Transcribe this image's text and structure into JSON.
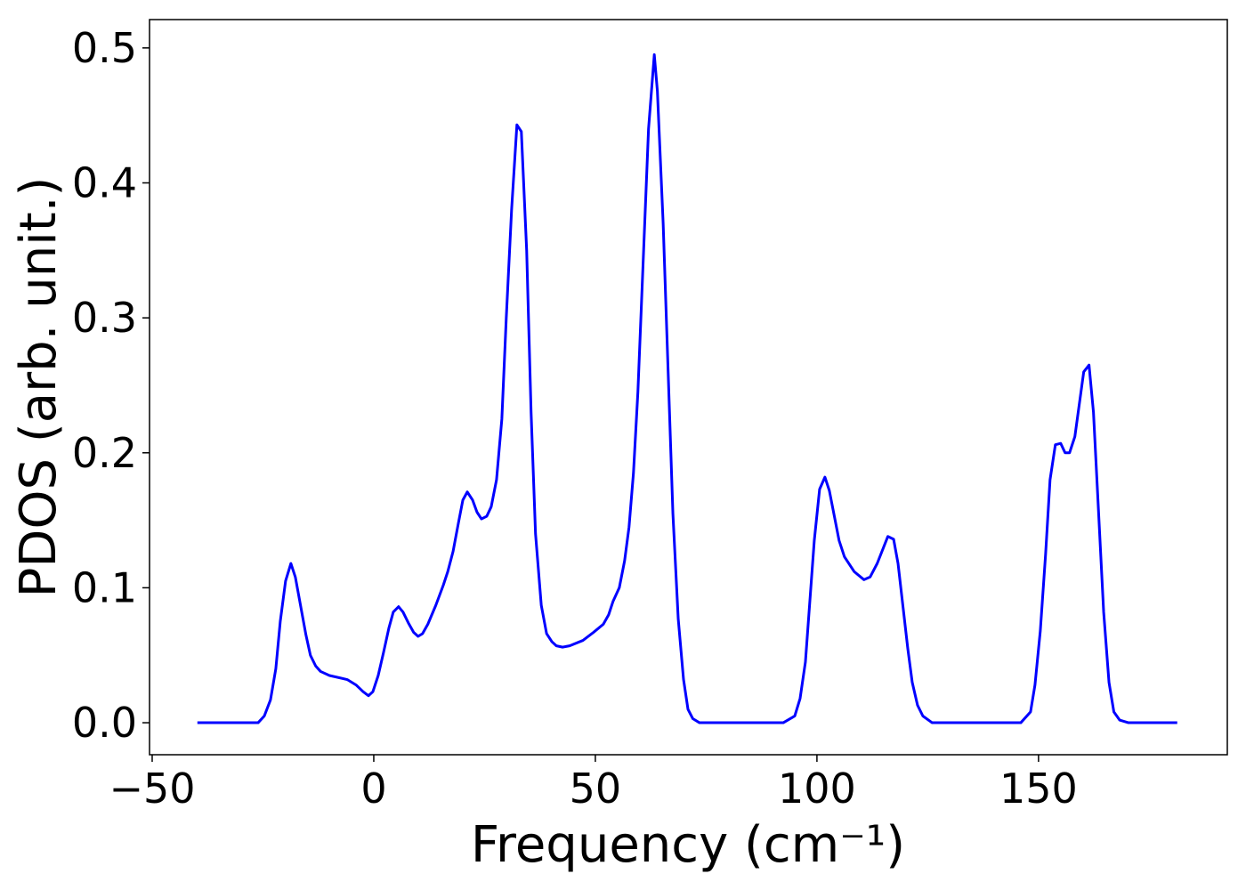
{
  "chart_data": {
    "type": "line",
    "xlabel": "Frequency (cm⁻¹)",
    "ylabel": "PDOS (arb. unit.)",
    "x": [
      -39.8,
      -26.1,
      -24.7,
      -23.3,
      -22.1,
      -21.1,
      -19.9,
      -18.7,
      -17.7,
      -15.3,
      -14.3,
      -13.1,
      -12,
      -10,
      -6,
      -4,
      -2.4,
      -1.2,
      -0.2,
      1,
      2.2,
      3.4,
      4.4,
      5.6,
      6.6,
      7.8,
      9,
      10,
      11,
      12.2,
      14,
      15.7,
      16.7,
      17.9,
      19.1,
      20.1,
      21.1,
      22.3,
      23.3,
      24.3,
      25.5,
      26.5,
      27.7,
      28.9,
      29.9,
      31.1,
      32.3,
      33.3,
      34.5,
      35.5,
      36.5,
      37.8,
      39,
      40.2,
      41.2,
      42.6,
      44.2,
      47.2,
      49.6,
      51.8,
      53,
      54,
      55.4,
      56.6,
      57.6,
      58.6,
      59.6,
      62,
      63.3,
      64,
      65.3,
      67.5,
      68.7,
      69.9,
      70.9,
      72,
      73.5,
      92.4,
      95,
      96.2,
      97.4,
      99.4,
      100.6,
      101.8,
      102.8,
      105,
      106.2,
      108.4,
      110.6,
      112,
      113.6,
      116,
      117.3,
      118.3,
      120.5,
      121.5,
      122.7,
      123.9,
      126,
      146,
      148.2,
      149.2,
      150.4,
      151.6,
      152.6,
      153.8,
      155,
      156,
      157,
      158.2,
      160.2,
      161.4,
      162.4,
      164.7,
      165.9,
      167,
      168.3,
      170.3,
      181.3
    ],
    "values": [
      0,
      0,
      0.005,
      0.017,
      0.04,
      0.075,
      0.105,
      0.118,
      0.108,
      0.065,
      0.05,
      0.042,
      0.038,
      0.035,
      0.032,
      0.028,
      0.023,
      0.02,
      0.023,
      0.035,
      0.052,
      0.07,
      0.082,
      0.086,
      0.082,
      0.074,
      0.067,
      0.064,
      0.066,
      0.073,
      0.087,
      0.102,
      0.112,
      0.127,
      0.148,
      0.165,
      0.171,
      0.165,
      0.156,
      0.151,
      0.153,
      0.16,
      0.18,
      0.225,
      0.3,
      0.38,
      0.443,
      0.438,
      0.35,
      0.23,
      0.14,
      0.087,
      0.066,
      0.06,
      0.057,
      0.056,
      0.057,
      0.061,
      0.067,
      0.073,
      0.08,
      0.09,
      0.1,
      0.12,
      0.145,
      0.185,
      0.245,
      0.44,
      0.495,
      0.468,
      0.37,
      0.155,
      0.077,
      0.032,
      0.01,
      0.003,
      0,
      0,
      0.005,
      0.018,
      0.045,
      0.135,
      0.173,
      0.182,
      0.172,
      0.135,
      0.123,
      0.112,
      0.106,
      0.108,
      0.118,
      0.138,
      0.136,
      0.118,
      0.055,
      0.03,
      0.013,
      0.005,
      0,
      0,
      0.008,
      0.028,
      0.068,
      0.125,
      0.18,
      0.206,
      0.207,
      0.2,
      0.2,
      0.212,
      0.26,
      0.265,
      0.23,
      0.082,
      0.03,
      0.008,
      0.002,
      0,
      0
    ],
    "color": "#0000ff",
    "xlim": [
      -50.6,
      192.6
    ],
    "ylim": [
      -0.0237,
      0.521
    ],
    "xticks": [
      {
        "value": -50,
        "label": "−50"
      },
      0,
      50,
      100,
      150
    ],
    "yticks": [
      {
        "value": 0,
        "label": "0.0"
      },
      0.1,
      0.2,
      0.3,
      0.4,
      0.5
    ],
    "grid": false
  }
}
